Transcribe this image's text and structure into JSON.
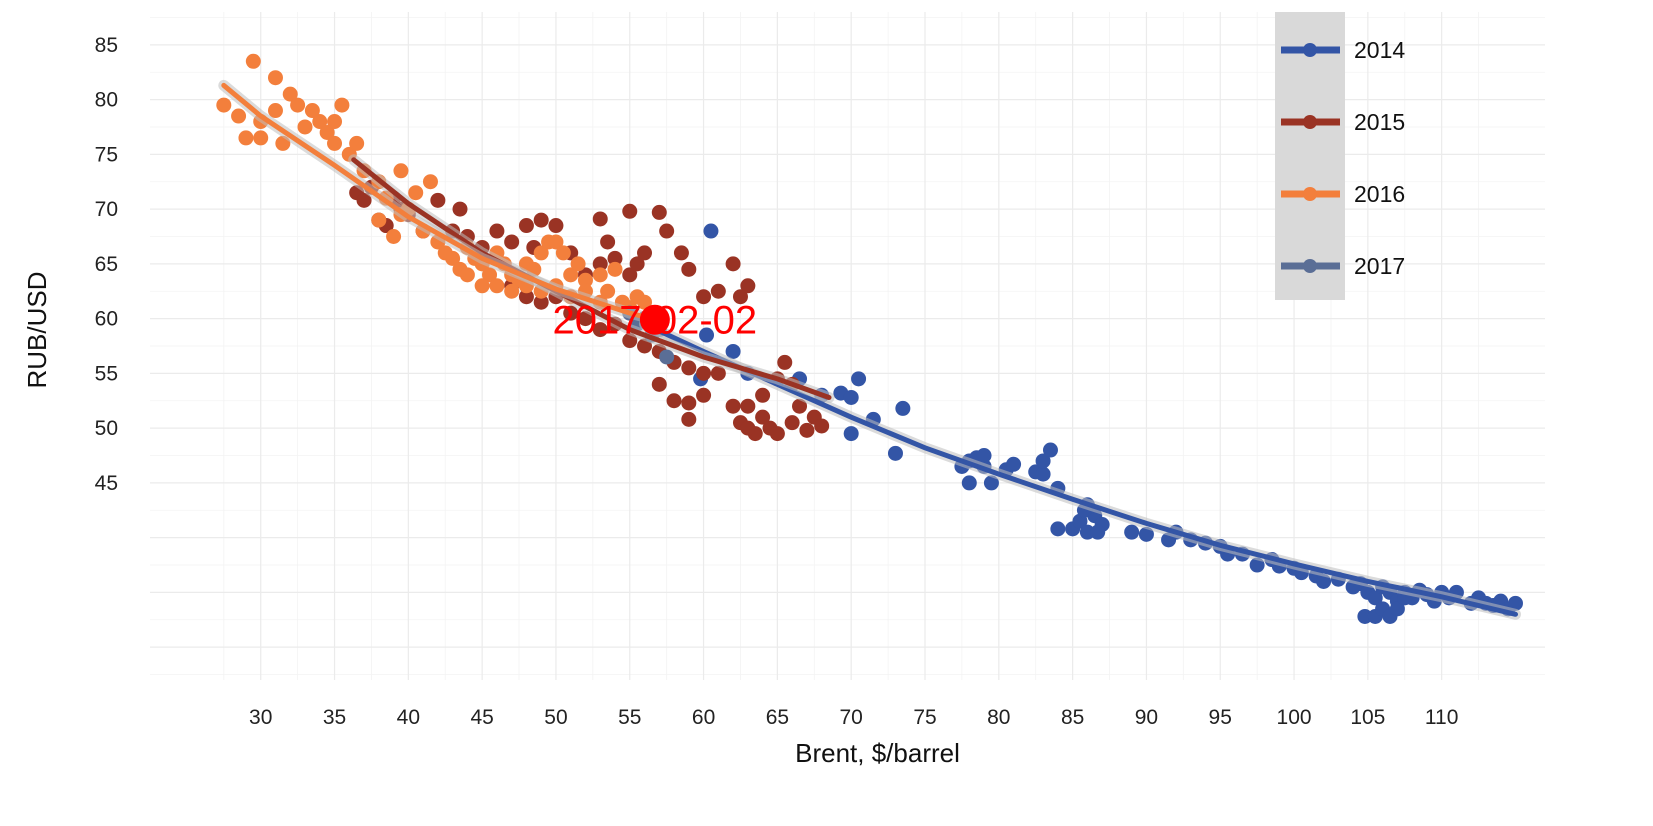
{
  "chart_data": {
    "type": "scatter",
    "xlabel": "Brent, $/barrel",
    "ylabel": "RUB/USD",
    "xlim": [
      22.5,
      117
    ],
    "ylim": [
      27,
      88
    ],
    "x_ticks": [
      30,
      35,
      40,
      45,
      50,
      55,
      60,
      65,
      70,
      75,
      80,
      85,
      90,
      95,
      100,
      105,
      110
    ],
    "y_ticks": [
      45,
      50,
      55,
      60,
      65,
      70,
      75,
      80,
      85
    ],
    "grid": true,
    "legend_position": "top-right",
    "series": [
      {
        "name": "2014",
        "color": "#3355a6",
        "fit": [
          [
            56,
            59.5
          ],
          [
            60,
            57.0
          ],
          [
            65,
            54.0
          ],
          [
            70,
            51.0
          ],
          [
            75,
            48.2
          ],
          [
            80,
            45.8
          ],
          [
            85,
            43.5
          ],
          [
            90,
            41.3
          ],
          [
            95,
            39.3
          ],
          [
            100,
            37.6
          ],
          [
            105,
            36.0
          ],
          [
            110,
            34.6
          ],
          [
            115,
            33.0
          ]
        ],
        "points": [
          [
            60.5,
            68
          ],
          [
            60.2,
            58.5
          ],
          [
            59.8,
            54.5
          ],
          [
            62,
            57
          ],
          [
            63,
            55
          ],
          [
            66.5,
            54.5
          ],
          [
            68,
            53
          ],
          [
            69.3,
            53.2
          ],
          [
            70,
            52.8
          ],
          [
            70.5,
            54.5
          ],
          [
            70,
            49.5
          ],
          [
            71.5,
            50.8
          ],
          [
            73,
            47.7
          ],
          [
            73.5,
            51.8
          ],
          [
            77.5,
            46.5
          ],
          [
            78,
            47
          ],
          [
            78,
            45
          ],
          [
            78.5,
            47.3
          ],
          [
            79,
            46.5
          ],
          [
            79.5,
            45
          ],
          [
            79,
            47.5
          ],
          [
            80.5,
            46.2
          ],
          [
            81,
            46.7
          ],
          [
            82.5,
            46
          ],
          [
            83,
            45.8
          ],
          [
            83,
            47
          ],
          [
            84,
            44.5
          ],
          [
            83.5,
            48
          ],
          [
            84,
            40.8
          ],
          [
            85,
            40.8
          ],
          [
            85.5,
            41.5
          ],
          [
            86,
            40.5
          ],
          [
            86.5,
            42
          ],
          [
            87,
            41.2
          ],
          [
            86,
            43
          ],
          [
            85.8,
            42.5
          ],
          [
            86.7,
            40.5
          ],
          [
            89,
            40.5
          ],
          [
            90,
            40.3
          ],
          [
            91.5,
            39.8
          ],
          [
            92,
            40.5
          ],
          [
            93,
            39.8
          ],
          [
            94,
            39.5
          ],
          [
            95,
            39.2
          ],
          [
            95.5,
            38.5
          ],
          [
            96.5,
            38.5
          ],
          [
            97.5,
            37.5
          ],
          [
            98.5,
            38
          ],
          [
            99,
            37.4
          ],
          [
            100,
            37.2
          ],
          [
            100.5,
            36.8
          ],
          [
            101.5,
            36.5
          ],
          [
            102,
            36
          ],
          [
            103,
            36.2
          ],
          [
            104,
            35.5
          ],
          [
            104.5,
            35.8
          ],
          [
            105,
            35
          ],
          [
            105.5,
            34.5
          ],
          [
            106,
            35.5
          ],
          [
            106.5,
            35
          ],
          [
            107,
            34.2
          ],
          [
            107.5,
            35
          ],
          [
            108,
            34.5
          ],
          [
            108.5,
            35.2
          ],
          [
            109,
            34.8
          ],
          [
            109.5,
            34.2
          ],
          [
            110,
            35
          ],
          [
            110.5,
            34.5
          ],
          [
            111,
            35
          ],
          [
            112,
            34
          ],
          [
            112.5,
            34.5
          ],
          [
            113,
            34
          ],
          [
            113.5,
            33.8
          ],
          [
            114,
            34.2
          ],
          [
            114.5,
            33.5
          ],
          [
            115,
            34
          ],
          [
            104.8,
            32.8
          ],
          [
            105.5,
            32.8
          ],
          [
            106,
            33.5
          ],
          [
            106.5,
            32.8
          ],
          [
            107,
            33.5
          ],
          [
            107.5,
            34.5
          ]
        ]
      },
      {
        "name": "2015",
        "color": "#9a3324",
        "fit": [
          [
            36.3,
            74.5
          ],
          [
            40,
            70.5
          ],
          [
            45,
            66.0
          ],
          [
            50,
            62.5
          ],
          [
            55,
            59.0
          ],
          [
            60,
            56.5
          ],
          [
            65,
            54.5
          ],
          [
            68.5,
            52.8
          ]
        ],
        "points": [
          [
            36.5,
            71.5
          ],
          [
            37,
            70.8
          ],
          [
            37.5,
            72
          ],
          [
            38,
            69
          ],
          [
            38.5,
            68.5
          ],
          [
            39,
            71
          ],
          [
            39.5,
            70
          ],
          [
            40,
            69.5
          ],
          [
            41,
            68
          ],
          [
            42,
            70.8
          ],
          [
            43,
            68
          ],
          [
            43.5,
            70
          ],
          [
            44,
            67.5
          ],
          [
            45,
            66.5
          ],
          [
            46,
            68
          ],
          [
            47,
            67
          ],
          [
            48,
            68.5
          ],
          [
            48.5,
            66.5
          ],
          [
            49,
            69
          ],
          [
            50,
            68.5
          ],
          [
            51,
            66
          ],
          [
            52,
            64
          ],
          [
            53,
            65
          ],
          [
            53.5,
            67
          ],
          [
            54,
            65.5
          ],
          [
            55,
            64
          ],
          [
            55.5,
            65
          ],
          [
            56,
            66
          ],
          [
            57,
            69.7
          ],
          [
            57.5,
            68
          ],
          [
            58.5,
            66
          ],
          [
            59,
            64.5
          ],
          [
            60,
            62
          ],
          [
            61,
            62.5
          ],
          [
            62,
            65
          ],
          [
            62.5,
            62
          ],
          [
            63,
            63
          ],
          [
            53,
            69.1
          ],
          [
            55,
            69.8
          ],
          [
            47,
            63
          ],
          [
            48,
            62
          ],
          [
            49,
            61.5
          ],
          [
            50,
            62
          ],
          [
            51,
            60.5
          ],
          [
            52,
            60
          ],
          [
            53,
            59
          ],
          [
            54,
            59.5
          ],
          [
            55,
            58
          ],
          [
            56,
            57.5
          ],
          [
            57,
            57
          ],
          [
            58,
            56
          ],
          [
            59,
            55.5
          ],
          [
            60,
            55
          ],
          [
            57,
            54
          ],
          [
            58,
            52.5
          ],
          [
            59,
            52.3
          ],
          [
            59,
            50.8
          ],
          [
            60,
            53
          ],
          [
            61,
            55
          ],
          [
            62,
            52
          ],
          [
            62.5,
            50.5
          ],
          [
            63,
            52
          ],
          [
            63.5,
            49.5
          ],
          [
            64,
            51
          ],
          [
            64.5,
            50
          ],
          [
            65,
            49.5
          ],
          [
            65,
            54.5
          ],
          [
            65.5,
            56
          ],
          [
            66,
            50.5
          ],
          [
            66.5,
            52
          ],
          [
            67,
            49.8
          ],
          [
            67.5,
            51
          ],
          [
            68,
            50.2
          ],
          [
            66,
            54
          ],
          [
            64,
            53
          ],
          [
            63,
            50
          ]
        ]
      },
      {
        "name": "2016",
        "color": "#f37f3c",
        "fit": [
          [
            27.5,
            81.3
          ],
          [
            30,
            78.5
          ],
          [
            35,
            74.0
          ],
          [
            40,
            69.3
          ],
          [
            45,
            65.5
          ],
          [
            50,
            62.7
          ],
          [
            55,
            60.5
          ],
          [
            57,
            59.8
          ]
        ],
        "points": [
          [
            27.5,
            79.5
          ],
          [
            28.5,
            78.5
          ],
          [
            29,
            76.5
          ],
          [
            29.5,
            83.5
          ],
          [
            30,
            78
          ],
          [
            30,
            76.5
          ],
          [
            31,
            79
          ],
          [
            31,
            82
          ],
          [
            31.5,
            76
          ],
          [
            32,
            80.5
          ],
          [
            32.5,
            79.5
          ],
          [
            33,
            77.5
          ],
          [
            33.5,
            79
          ],
          [
            34,
            78
          ],
          [
            34.5,
            77
          ],
          [
            35,
            78
          ],
          [
            35,
            76
          ],
          [
            35.5,
            79.5
          ],
          [
            36,
            75
          ],
          [
            36.5,
            76
          ],
          [
            37,
            73.5
          ],
          [
            38,
            72.5
          ],
          [
            38.5,
            71
          ],
          [
            39.5,
            73.5
          ],
          [
            39.5,
            69.5
          ],
          [
            40,
            70
          ],
          [
            38,
            69
          ],
          [
            39,
            67.5
          ],
          [
            40.5,
            71.5
          ],
          [
            41,
            68
          ],
          [
            41.5,
            72.5
          ],
          [
            42,
            67
          ],
          [
            42.5,
            66
          ],
          [
            43,
            65.5
          ],
          [
            43.5,
            64.5
          ],
          [
            44,
            66.5
          ],
          [
            44.5,
            65.5
          ],
          [
            45,
            65
          ],
          [
            45.5,
            64
          ],
          [
            46,
            66
          ],
          [
            46.5,
            65
          ],
          [
            47,
            64
          ],
          [
            47.5,
            63.5
          ],
          [
            48,
            65
          ],
          [
            48.5,
            64.5
          ],
          [
            49,
            66
          ],
          [
            49.5,
            67
          ],
          [
            50,
            67
          ],
          [
            50.5,
            66
          ],
          [
            51,
            64
          ],
          [
            51.5,
            65
          ],
          [
            52,
            63.5
          ],
          [
            53,
            64
          ],
          [
            53.5,
            62.5
          ],
          [
            54,
            64.5
          ],
          [
            54.5,
            61.5
          ],
          [
            55,
            61
          ],
          [
            55.5,
            62
          ],
          [
            56,
            61.5
          ],
          [
            46,
            63
          ],
          [
            47,
            62.5
          ],
          [
            48,
            63
          ],
          [
            49,
            62.5
          ],
          [
            50,
            63
          ],
          [
            51,
            62
          ],
          [
            52,
            62.5
          ],
          [
            53,
            61.5
          ],
          [
            44,
            64
          ],
          [
            45,
            63
          ]
        ]
      },
      {
        "name": "2017",
        "color": "#5a6e96",
        "fit": [],
        "points": [
          [
            55,
            60.5
          ],
          [
            56,
            60
          ],
          [
            57,
            59
          ],
          [
            57.5,
            56.5
          ],
          [
            56.5,
            58.5
          ],
          [
            55.5,
            59.5
          ]
        ]
      }
    ],
    "annotations": [
      {
        "text": "2017-02-02",
        "x": 56.7,
        "y": 59.9,
        "color": "#ff0000"
      }
    ]
  }
}
